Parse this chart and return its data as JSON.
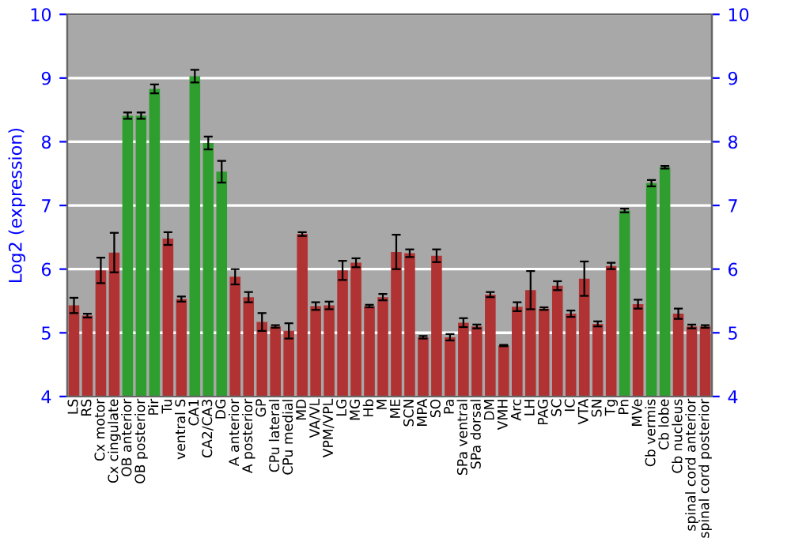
{
  "chart_data": {
    "type": "bar",
    "ylabel": "Log2 (expression)",
    "categories": [
      "LS",
      "RS",
      "Cx motor",
      "Cx cingulate",
      "OB anterior",
      "OB posterior",
      "Pir",
      "Tu",
      "ventral S",
      "CA1",
      "CA2/CA3",
      "DG",
      "A anterior",
      "A posterior",
      "GP",
      "CPu lateral",
      "CPu medial",
      "MD",
      "VA/VL",
      "VPM/VPL",
      "LG",
      "MG",
      "Hb",
      "M",
      "ME",
      "SCN",
      "MPA",
      "SO",
      "Pa",
      "SPa ventral",
      "SPa dorsal",
      "DM",
      "VMH",
      "Arc",
      "LH",
      "PAG",
      "SC",
      "IC",
      "VTA",
      "SN",
      "Tg",
      "Pn",
      "MVe",
      "Cb vermis",
      "Cb lobe",
      "Cb nucleus",
      "spinal cord anterior",
      "spinal cord posterior"
    ],
    "values": [
      5.43,
      5.27,
      5.98,
      6.26,
      8.41,
      8.41,
      8.83,
      6.48,
      5.53,
      9.03,
      7.98,
      7.53,
      5.88,
      5.56,
      5.17,
      5.1,
      5.03,
      6.55,
      5.42,
      5.43,
      5.98,
      6.1,
      5.42,
      5.56,
      6.27,
      6.25,
      4.93,
      6.21,
      4.93,
      5.16,
      5.1,
      5.6,
      4.8,
      5.41,
      5.67,
      5.38,
      5.74,
      5.3,
      5.85,
      5.14,
      6.05,
      6.92,
      5.45,
      7.35,
      7.6,
      5.3,
      5.1,
      5.1
    ],
    "errors": [
      0.12,
      0.03,
      0.2,
      0.31,
      0.05,
      0.05,
      0.07,
      0.1,
      0.04,
      0.1,
      0.1,
      0.17,
      0.12,
      0.08,
      0.14,
      0.02,
      0.12,
      0.03,
      0.06,
      0.06,
      0.15,
      0.07,
      0.02,
      0.05,
      0.27,
      0.06,
      0.02,
      0.1,
      0.05,
      0.07,
      0.03,
      0.04,
      0.01,
      0.07,
      0.3,
      0.02,
      0.07,
      0.05,
      0.27,
      0.04,
      0.05,
      0.03,
      0.07,
      0.05,
      0.02,
      0.08,
      0.03,
      0.02
    ],
    "colors": [
      "#b03232",
      "#b03232",
      "#b03232",
      "#b03232",
      "#2e9e2e",
      "#2e9e2e",
      "#2e9e2e",
      "#b03232",
      "#b03232",
      "#2e9e2e",
      "#2e9e2e",
      "#2e9e2e",
      "#b03232",
      "#b03232",
      "#b03232",
      "#b03232",
      "#b03232",
      "#b03232",
      "#b03232",
      "#b03232",
      "#b03232",
      "#b03232",
      "#b03232",
      "#b03232",
      "#b03232",
      "#b03232",
      "#b03232",
      "#b03232",
      "#b03232",
      "#b03232",
      "#b03232",
      "#b03232",
      "#b03232",
      "#b03232",
      "#b03232",
      "#b03232",
      "#b03232",
      "#b03232",
      "#b03232",
      "#b03232",
      "#b03232",
      "#2e9e2e",
      "#b03232",
      "#2e9e2e",
      "#2e9e2e",
      "#b03232",
      "#b03232",
      "#b03232"
    ],
    "ylim": [
      4,
      10
    ],
    "yticks": [
      4,
      5,
      6,
      7,
      8,
      9,
      10
    ],
    "y2lim": [
      4,
      10
    ],
    "y2ticks": [
      4,
      5,
      6,
      7,
      8,
      9,
      10
    ],
    "grid": "y"
  }
}
